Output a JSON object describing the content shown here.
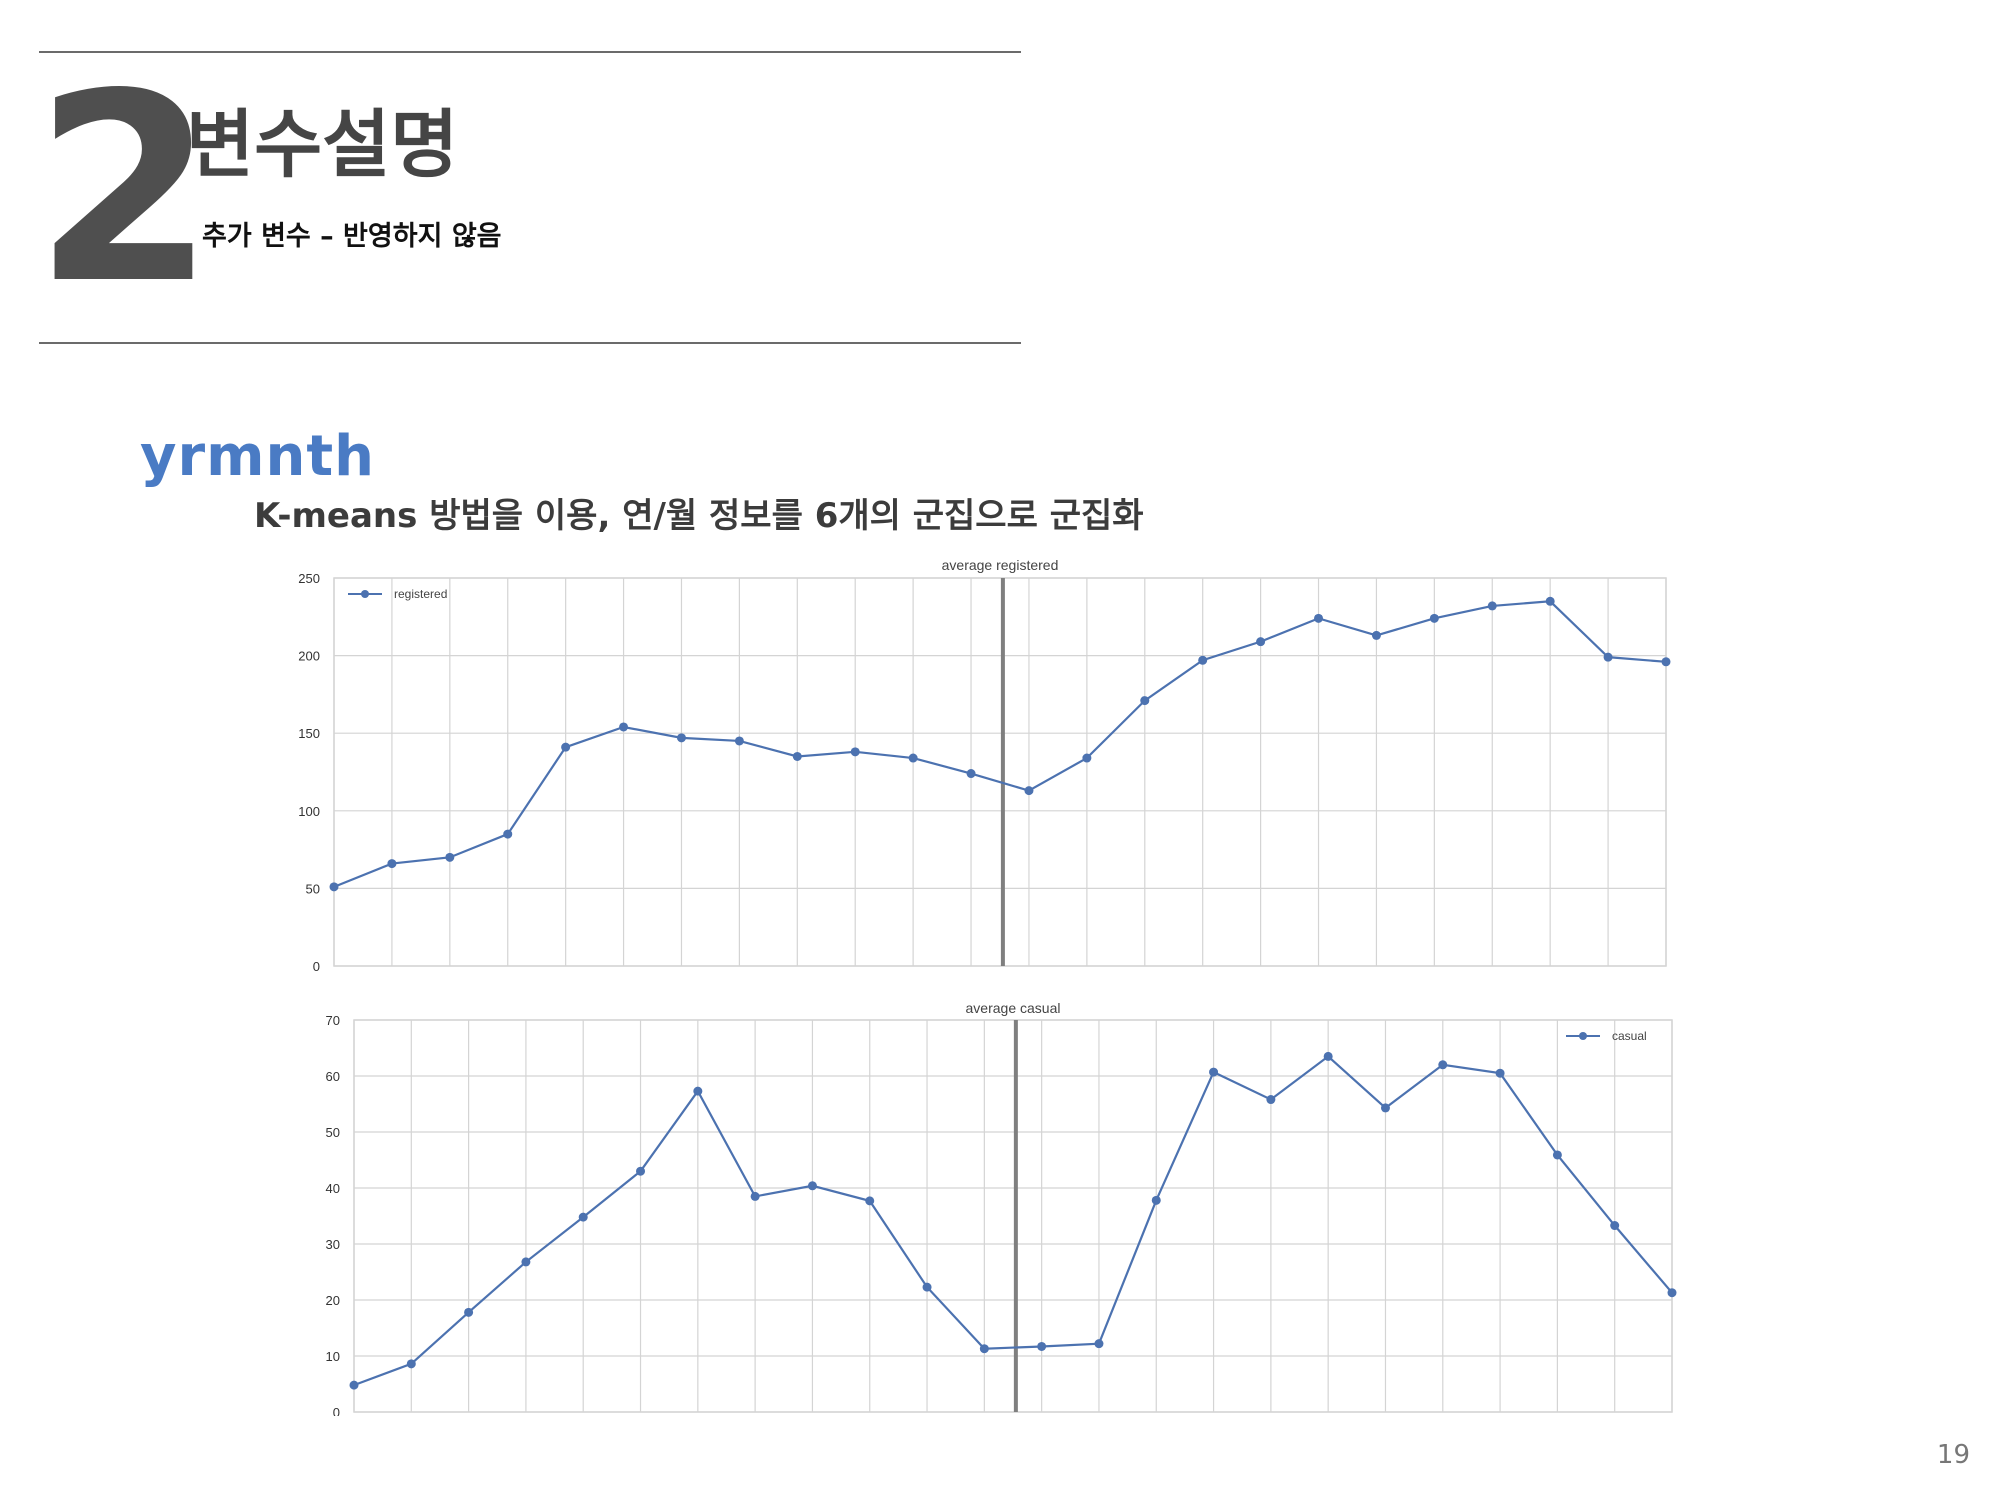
{
  "header": {
    "section_number": "2",
    "title": "변수설명",
    "subtitle": "추가 변수 – 반영하지 않음"
  },
  "variable": {
    "name": "yrmnth",
    "description": "K-means 방법을 이용, 연/월 정보를 6개의 군집으로 군집화"
  },
  "page_number": "19",
  "colors": {
    "line": "#4c72b0",
    "marker_line": "#7f7f7f",
    "grid": "#d4d4d4"
  },
  "chart_data": [
    {
      "type": "line",
      "title": "average registered",
      "x": [
        1,
        2,
        3,
        4,
        5,
        6,
        7,
        8,
        9,
        10,
        11,
        12,
        13,
        14,
        15,
        16,
        17,
        18,
        19,
        20,
        21,
        22,
        23,
        24
      ],
      "series": [
        {
          "name": "registered",
          "values": [
            51,
            66,
            70,
            85,
            141,
            154,
            147,
            145,
            135,
            138,
            134,
            124,
            113,
            134,
            171,
            197,
            209,
            224,
            213,
            224,
            232,
            235,
            199,
            196
          ]
        }
      ],
      "xlim": [
        1,
        24
      ],
      "ylim": [
        0,
        250
      ],
      "yticks": [
        0,
        50,
        100,
        150,
        200,
        250
      ],
      "vline_x": 12.55,
      "legend": "top-left",
      "grid": true
    },
    {
      "type": "line",
      "title": "average casual",
      "x": [
        1,
        2,
        3,
        4,
        5,
        6,
        7,
        8,
        9,
        10,
        11,
        12,
        13,
        14,
        15,
        16,
        17,
        18,
        19,
        20,
        21,
        22,
        23,
        24
      ],
      "series": [
        {
          "name": "casual",
          "values": [
            4.8,
            8.6,
            17.8,
            26.8,
            34.8,
            43.0,
            57.3,
            38.5,
            40.4,
            37.7,
            22.3,
            11.3,
            11.7,
            12.2,
            37.8,
            60.7,
            55.8,
            63.5,
            54.3,
            62.0,
            60.5,
            45.9,
            33.3,
            21.3
          ]
        }
      ],
      "xlim": [
        1,
        24
      ],
      "ylim": [
        0,
        70
      ],
      "yticks": [
        0,
        10,
        20,
        30,
        40,
        50,
        60,
        70
      ],
      "vline_x": 12.55,
      "legend": "top-right",
      "grid": true
    }
  ]
}
